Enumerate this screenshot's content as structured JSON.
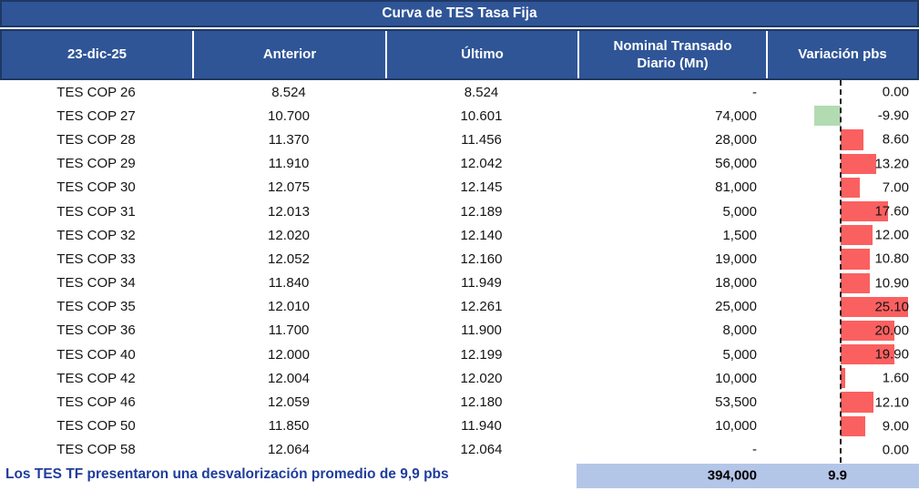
{
  "title": "Curva de TES Tasa Fija",
  "table": {
    "columns": [
      "23-dic-25",
      "Anterior",
      "Último",
      "Nominal Transado Diario (Mn)",
      "Variación pbs"
    ],
    "rows": [
      {
        "label": "TES COP 26",
        "anterior": "8.524",
        "ultimo": "8.524",
        "nominal": "-",
        "variacion": "0.00",
        "variacion_value": 0.0
      },
      {
        "label": "TES COP 27",
        "anterior": "10.700",
        "ultimo": "10.601",
        "nominal": "74,000",
        "variacion": "-9.90",
        "variacion_value": -9.9
      },
      {
        "label": "TES COP 28",
        "anterior": "11.370",
        "ultimo": "11.456",
        "nominal": "28,000",
        "variacion": "8.60",
        "variacion_value": 8.6
      },
      {
        "label": "TES COP 29",
        "anterior": "11.910",
        "ultimo": "12.042",
        "nominal": "56,000",
        "variacion": "13.20",
        "variacion_value": 13.2
      },
      {
        "label": "TES COP 30",
        "anterior": "12.075",
        "ultimo": "12.145",
        "nominal": "81,000",
        "variacion": "7.00",
        "variacion_value": 7.0
      },
      {
        "label": "TES COP 31",
        "anterior": "12.013",
        "ultimo": "12.189",
        "nominal": "5,000",
        "variacion": "17.60",
        "variacion_value": 17.6
      },
      {
        "label": "TES COP 32",
        "anterior": "12.020",
        "ultimo": "12.140",
        "nominal": "1,500",
        "variacion": "12.00",
        "variacion_value": 12.0
      },
      {
        "label": "TES COP 33",
        "anterior": "12.052",
        "ultimo": "12.160",
        "nominal": "19,000",
        "variacion": "10.80",
        "variacion_value": 10.8
      },
      {
        "label": "TES COP 34",
        "anterior": "11.840",
        "ultimo": "11.949",
        "nominal": "18,000",
        "variacion": "10.90",
        "variacion_value": 10.9
      },
      {
        "label": "TES COP 35",
        "anterior": "12.010",
        "ultimo": "12.261",
        "nominal": "25,000",
        "variacion": "25.10",
        "variacion_value": 25.1
      },
      {
        "label": "TES COP 36",
        "anterior": "11.700",
        "ultimo": "11.900",
        "nominal": "8,000",
        "variacion": "20.00",
        "variacion_value": 20.0
      },
      {
        "label": "TES COP 40",
        "anterior": "12.000",
        "ultimo": "12.199",
        "nominal": "5,000",
        "variacion": "19.90",
        "variacion_value": 19.9
      },
      {
        "label": "TES COP 42",
        "anterior": "12.004",
        "ultimo": "12.020",
        "nominal": "10,000",
        "variacion": "1.60",
        "variacion_value": 1.6
      },
      {
        "label": "TES COP 46",
        "anterior": "12.059",
        "ultimo": "12.180",
        "nominal": "53,500",
        "variacion": "12.10",
        "variacion_value": 12.1
      },
      {
        "label": "TES COP 50",
        "anterior": "11.850",
        "ultimo": "11.940",
        "nominal": "10,000",
        "variacion": "9.00",
        "variacion_value": 9.0
      },
      {
        "label": "TES COP 58",
        "anterior": "12.064",
        "ultimo": "12.064",
        "nominal": "-",
        "variacion": "0.00",
        "variacion_value": 0.0
      }
    ]
  },
  "footer": {
    "note": "Los TES TF presentaron una desvalorización promedio de 9,9 pbs",
    "total_nominal": "394,000",
    "avg_variacion": "9.9"
  },
  "colors": {
    "header_bg": "#2F5597",
    "header_border": "#1F3864",
    "bar_positive": "#FB6060",
    "bar_negative": "#B2DBB2",
    "footer_band": "#B4C6E7",
    "footer_text": "#1F3D9C"
  },
  "chart_data": {
    "type": "table",
    "title": "Curva de TES Tasa Fija",
    "date": "23-dic-25",
    "columns": [
      "23-dic-25",
      "Anterior",
      "Último",
      "Nominal Transado Diario (Mn)",
      "Variación pbs"
    ],
    "rows": [
      {
        "bond": "TES COP 26",
        "anterior": 8.524,
        "ultimo": 8.524,
        "nominal_mn": null,
        "variacion_pbs": 0.0
      },
      {
        "bond": "TES COP 27",
        "anterior": 10.7,
        "ultimo": 10.601,
        "nominal_mn": 74000,
        "variacion_pbs": -9.9
      },
      {
        "bond": "TES COP 28",
        "anterior": 11.37,
        "ultimo": 11.456,
        "nominal_mn": 28000,
        "variacion_pbs": 8.6
      },
      {
        "bond": "TES COP 29",
        "anterior": 11.91,
        "ultimo": 12.042,
        "nominal_mn": 56000,
        "variacion_pbs": 13.2
      },
      {
        "bond": "TES COP 30",
        "anterior": 12.075,
        "ultimo": 12.145,
        "nominal_mn": 81000,
        "variacion_pbs": 7.0
      },
      {
        "bond": "TES COP 31",
        "anterior": 12.013,
        "ultimo": 12.189,
        "nominal_mn": 5000,
        "variacion_pbs": 17.6
      },
      {
        "bond": "TES COP 32",
        "anterior": 12.02,
        "ultimo": 12.14,
        "nominal_mn": 1500,
        "variacion_pbs": 12.0
      },
      {
        "bond": "TES COP 33",
        "anterior": 12.052,
        "ultimo": 12.16,
        "nominal_mn": 19000,
        "variacion_pbs": 10.8
      },
      {
        "bond": "TES COP 34",
        "anterior": 11.84,
        "ultimo": 11.949,
        "nominal_mn": 18000,
        "variacion_pbs": 10.9
      },
      {
        "bond": "TES COP 35",
        "anterior": 12.01,
        "ultimo": 12.261,
        "nominal_mn": 25000,
        "variacion_pbs": 25.1
      },
      {
        "bond": "TES COP 36",
        "anterior": 11.7,
        "ultimo": 11.9,
        "nominal_mn": 8000,
        "variacion_pbs": 20.0
      },
      {
        "bond": "TES COP 40",
        "anterior": 12.0,
        "ultimo": 12.199,
        "nominal_mn": 5000,
        "variacion_pbs": 19.9
      },
      {
        "bond": "TES COP 42",
        "anterior": 12.004,
        "ultimo": 12.02,
        "nominal_mn": 10000,
        "variacion_pbs": 1.6
      },
      {
        "bond": "TES COP 46",
        "anterior": 12.059,
        "ultimo": 12.18,
        "nominal_mn": 53500,
        "variacion_pbs": 12.1
      },
      {
        "bond": "TES COP 50",
        "anterior": 11.85,
        "ultimo": 11.94,
        "nominal_mn": 10000,
        "variacion_pbs": 9.0
      },
      {
        "bond": "TES COP 58",
        "anterior": 12.064,
        "ultimo": 12.064,
        "nominal_mn": null,
        "variacion_pbs": 0.0
      }
    ],
    "embedded_bars": {
      "column": "Variación pbs",
      "type": "bar",
      "orientation": "horizontal",
      "zero_axis": "dashed vertical line",
      "positive_color": "#FB6060",
      "negative_color": "#B2DBB2",
      "value_range": [
        -9.9,
        25.1
      ]
    },
    "totals": {
      "nominal_mn_total": 394000,
      "variacion_promedio_pbs": 9.9
    },
    "note": "Los TES TF presentaron una desvalorización promedio de 9,9 pbs"
  }
}
